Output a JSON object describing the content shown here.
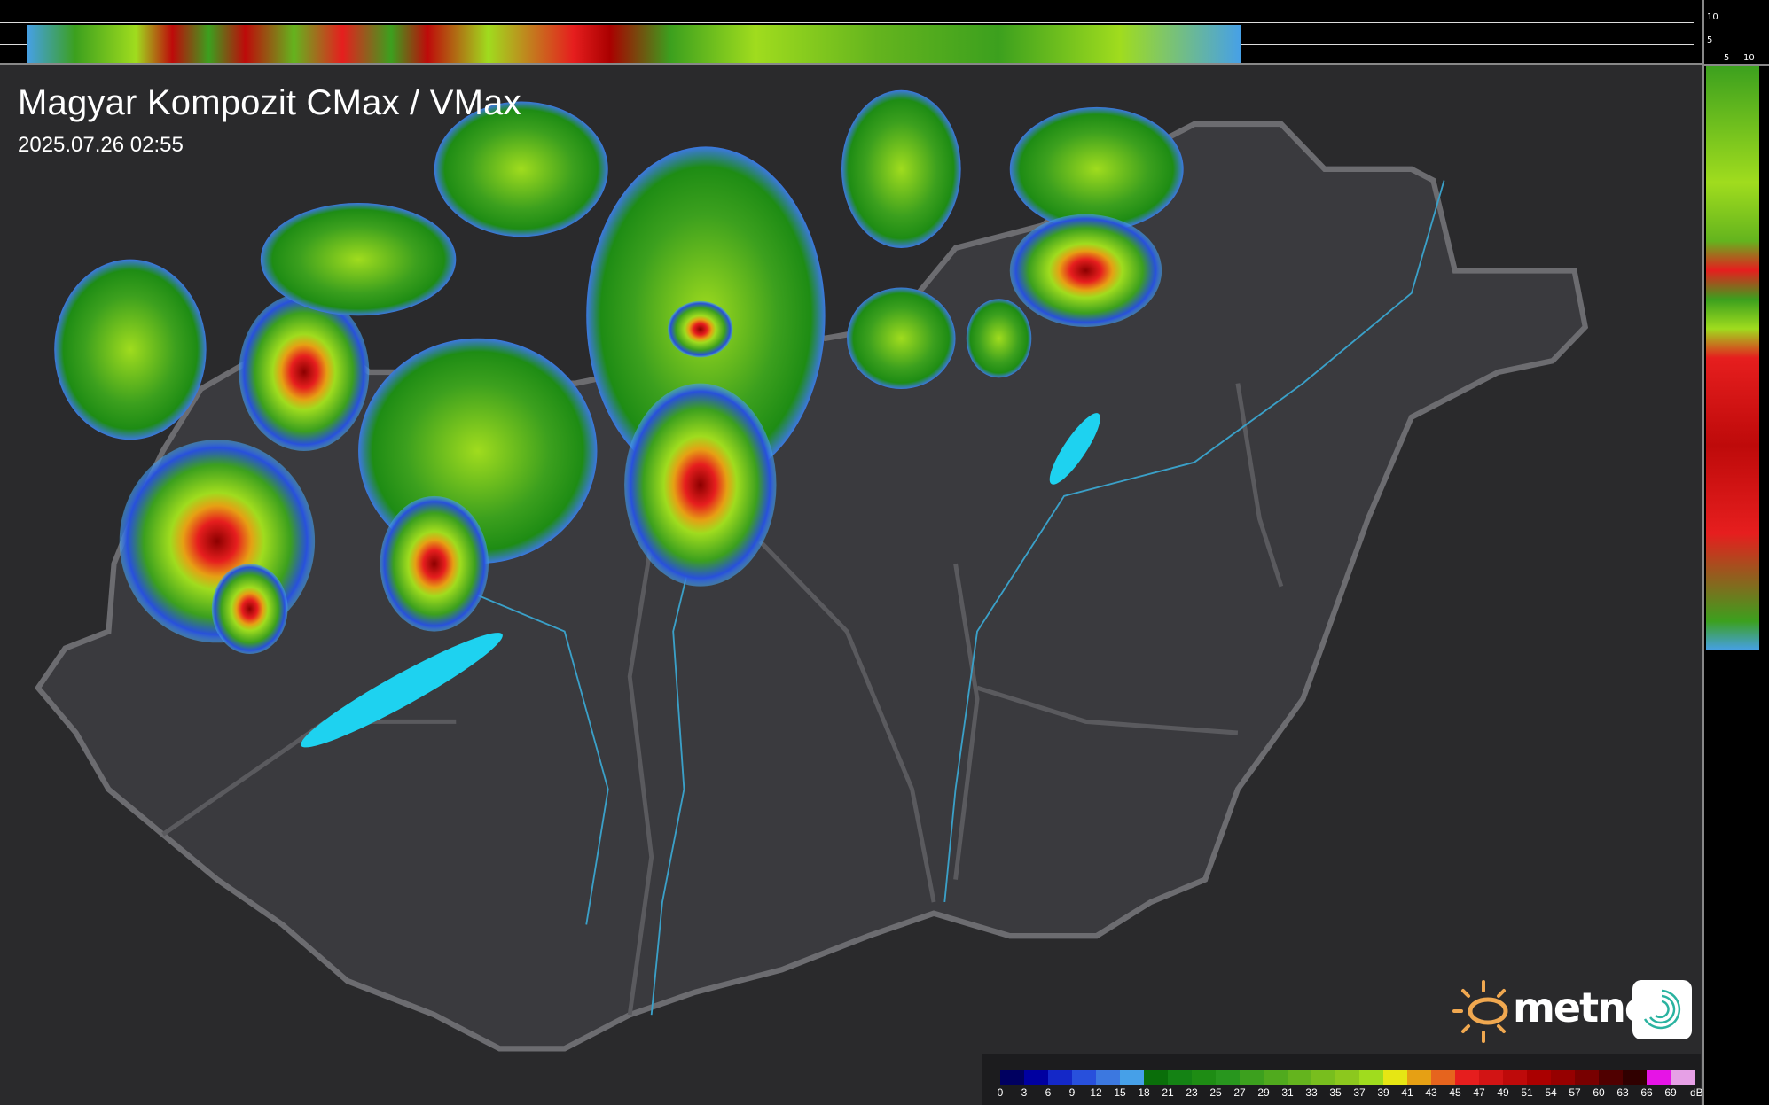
{
  "header": {
    "title": "Magyar Kompozit CMax / VMax",
    "timestamp": "2025.07.26 02:55"
  },
  "top_profile": {
    "height_ticks": [
      "10",
      "5"
    ]
  },
  "side_profile": {
    "height_ticks": [
      "5",
      "10"
    ]
  },
  "legend": {
    "unit": "dBZ",
    "labels": [
      "0",
      "3",
      "6",
      "9",
      "12",
      "15",
      "18",
      "21",
      "23",
      "25",
      "27",
      "29",
      "31",
      "33",
      "35",
      "37",
      "39",
      "41",
      "43",
      "45",
      "47",
      "49",
      "51",
      "54",
      "57",
      "60",
      "63",
      "66",
      "69"
    ],
    "colors": [
      "#000060",
      "#0000a0",
      "#1428c8",
      "#2850dc",
      "#3c78e0",
      "#46a0e8",
      "#0a6e0a",
      "#148214",
      "#1e8c14",
      "#28961e",
      "#3ca01e",
      "#50aa1e",
      "#64b41e",
      "#78be1e",
      "#8cc81e",
      "#a0dc1e",
      "#e6e614",
      "#e6a014",
      "#e6641e",
      "#e61e1e",
      "#d21414",
      "#be0a0a",
      "#aa0000",
      "#960000",
      "#780000",
      "#500000",
      "#300000",
      "#e614e6",
      "#e6a0e6",
      "#96e6e6"
    ]
  },
  "logo": {
    "brand": "metnet",
    "brand_color": "#f0a850",
    "icon_color": "#2ab3a0"
  },
  "map": {
    "lake_color": "#1ed2f0",
    "river_color": "#3aa0c8",
    "border_color": "#6c6c70"
  }
}
